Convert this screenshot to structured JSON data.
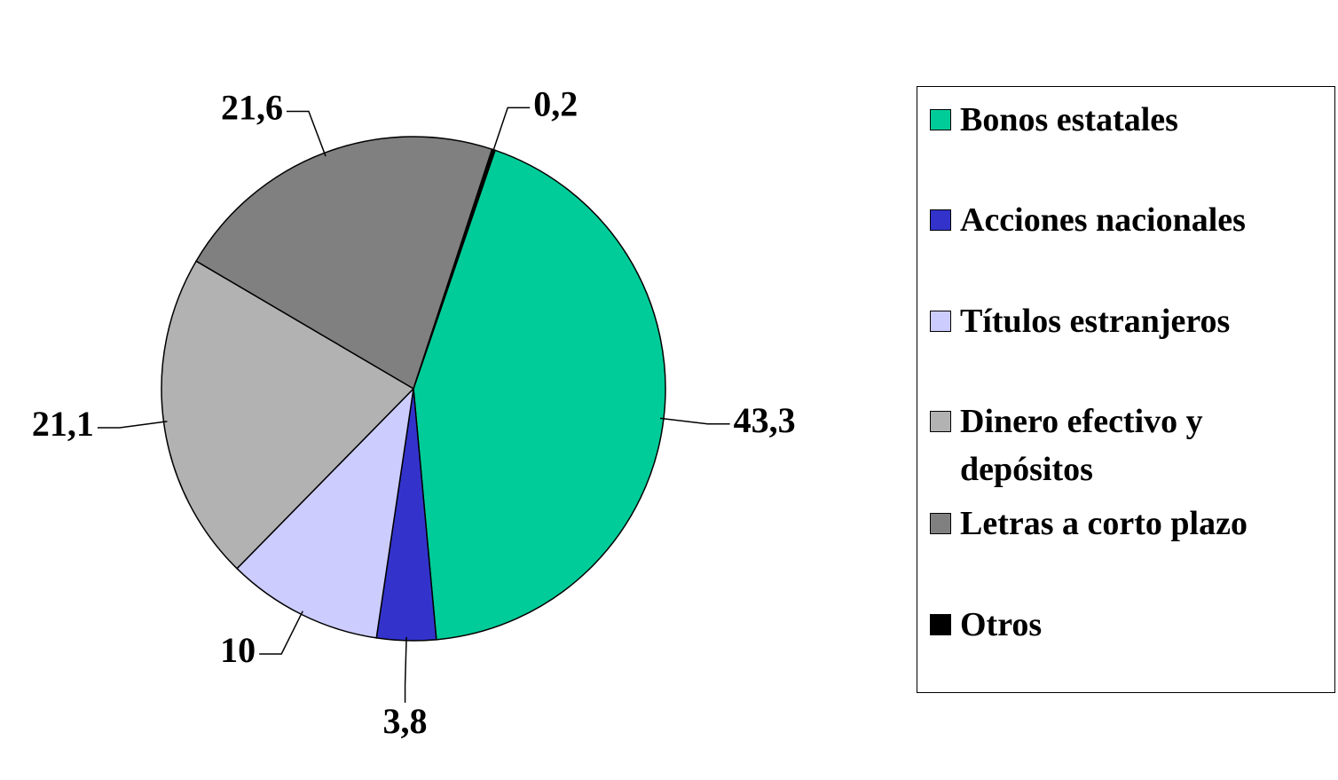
{
  "chart_data": {
    "type": "pie",
    "categories": [
      "Bonos estatales",
      "Acciones nacionales",
      "Títulos estranjeros",
      "Dinero efectivo y depósitos",
      "Letras a corto plazo",
      "Otros"
    ],
    "values": [
      43.3,
      3.8,
      10,
      21.1,
      21.6,
      0.2
    ],
    "value_labels": [
      "43,3",
      "3,8",
      "10",
      "21,1",
      "21,6",
      "0,2"
    ],
    "colors": [
      "#00cc99",
      "#3333cc",
      "#ccccff",
      "#b2b2b2",
      "#808080",
      "#000000"
    ],
    "legend": "right"
  }
}
